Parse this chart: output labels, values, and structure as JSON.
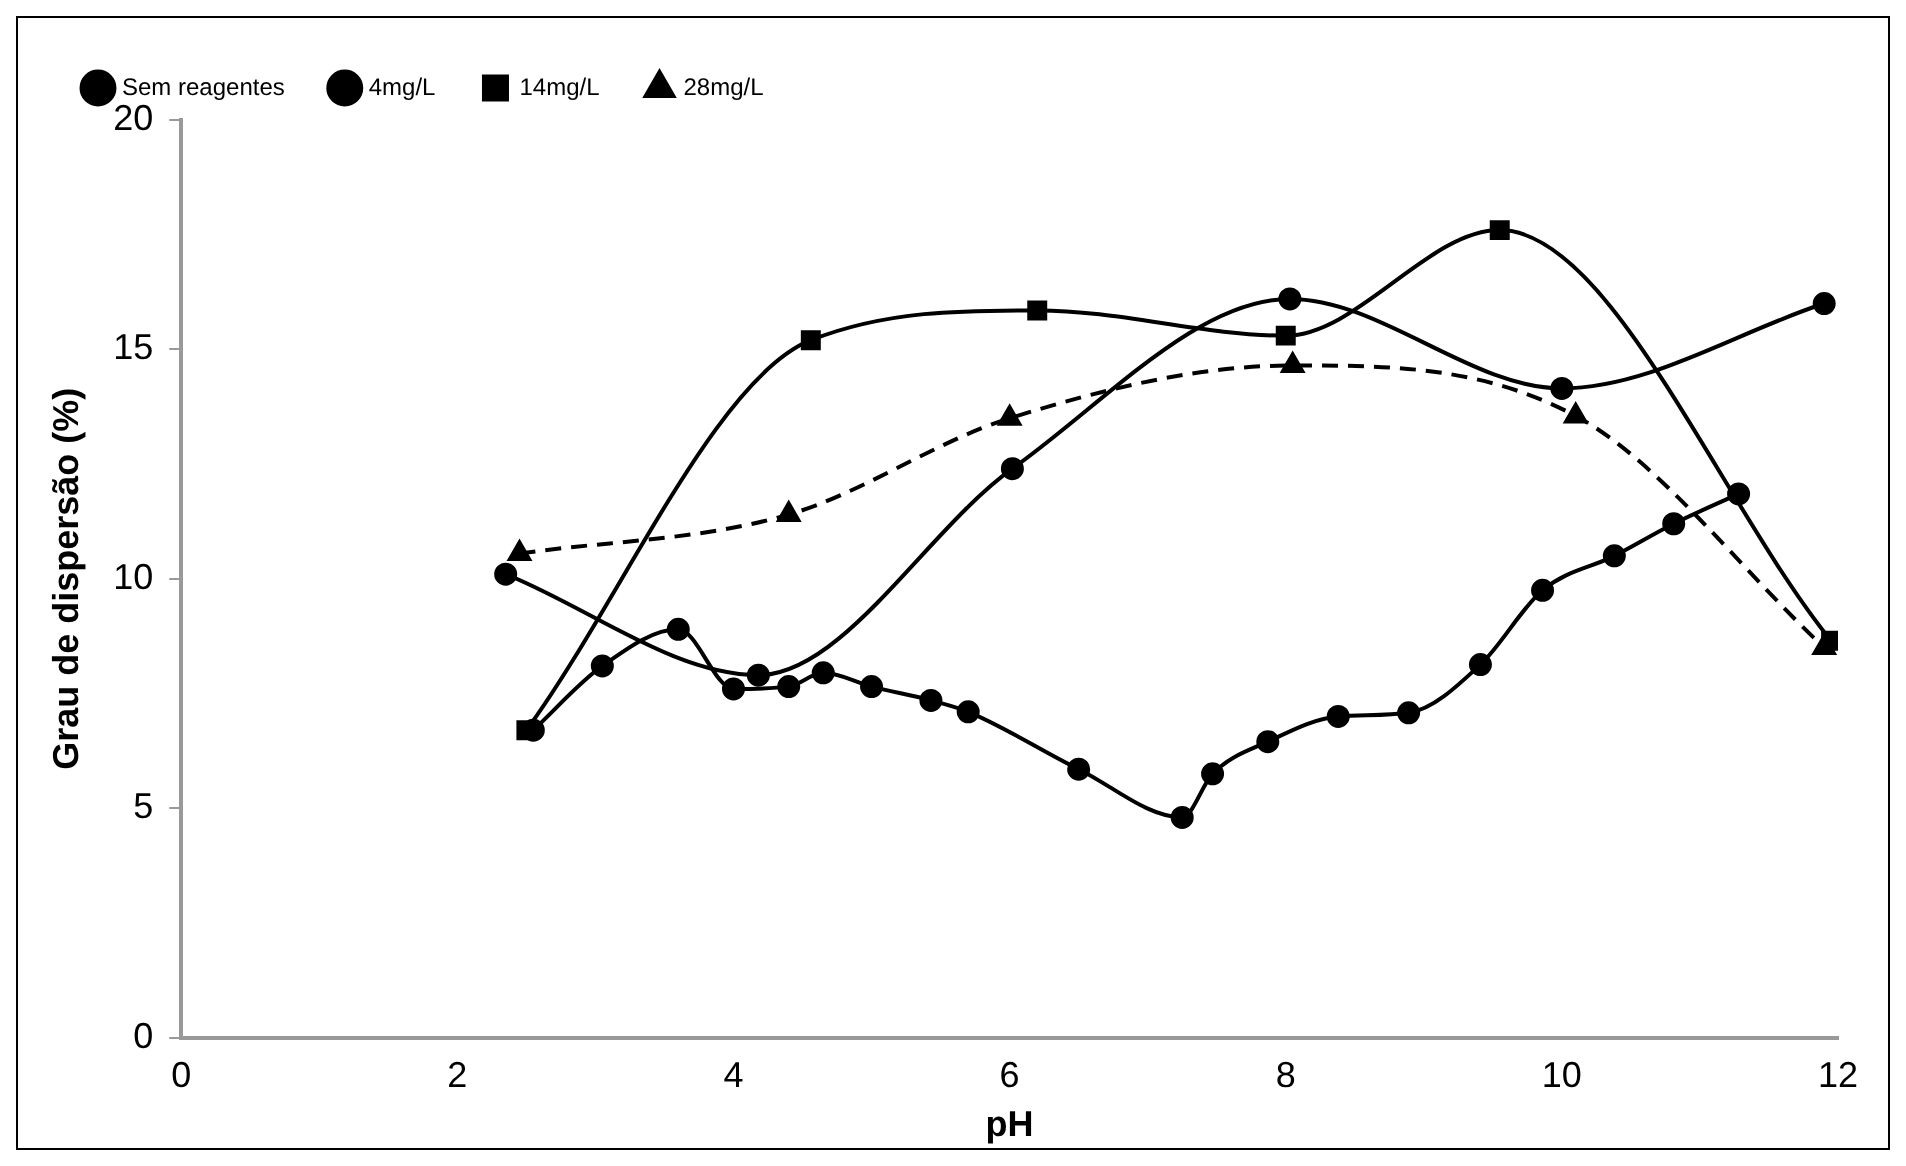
{
  "chart_data": {
    "type": "line",
    "xlabel": "pH",
    "ylabel": "Grau de dispersão (%)",
    "xlim": [
      0,
      12
    ],
    "xticks": [
      0,
      2,
      4,
      6,
      8,
      10,
      12
    ],
    "ylim": [
      0,
      20
    ],
    "yticks": [
      0,
      5,
      10,
      15,
      20
    ],
    "grid": false,
    "legend": "top",
    "series": [
      {
        "name": "Sem reagentes",
        "color": "#000000",
        "marker": "circle",
        "line_style": "solid",
        "x": [
          2.55,
          3.05,
          3.6,
          4.0,
          4.4,
          4.65,
          5.0,
          5.43,
          5.7,
          6.5,
          7.25,
          7.47,
          7.87,
          8.38,
          8.89,
          9.41,
          9.86,
          10.38,
          10.81,
          11.28
        ],
        "values": [
          6.7,
          8.1,
          8.9,
          7.6,
          7.65,
          7.95,
          7.65,
          7.35,
          7.1,
          5.85,
          4.8,
          5.75,
          6.45,
          7.0,
          7.08,
          8.13,
          9.75,
          10.5,
          11.2,
          11.85
        ]
      },
      {
        "name": "4mg/L",
        "color": "#000000",
        "marker": "circle",
        "line_style": "solid",
        "x": [
          2.35,
          4.18,
          6.02,
          8.03,
          10.0,
          11.9
        ],
        "values": [
          10.1,
          7.9,
          12.4,
          16.1,
          14.15,
          16.0
        ]
      },
      {
        "name": "14mg/L",
        "color": "#000000",
        "marker": "square",
        "line_style": "solid",
        "x": [
          2.5,
          4.56,
          6.2,
          8.0,
          9.55,
          11.95
        ],
        "values": [
          6.7,
          15.2,
          15.85,
          15.3,
          17.6,
          8.65
        ]
      },
      {
        "name": "28mg/L",
        "color": "#000000",
        "marker": "triangle",
        "line_style": "dashed",
        "x": [
          2.45,
          4.4,
          6.0,
          8.05,
          10.1,
          11.9
        ],
        "values": [
          10.55,
          11.4,
          13.5,
          14.65,
          13.55,
          8.5
        ]
      }
    ]
  }
}
